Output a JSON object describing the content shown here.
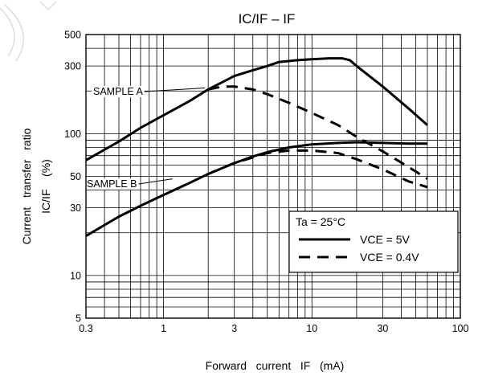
{
  "chart_data": {
    "type": "line",
    "title": "IC/IF – IF",
    "xlabel": "Forward   current   IF   (mA)",
    "ylabel_line1": "Current   transfer   ratio",
    "ylabel_line2": "IC/IF    (%)",
    "x_scale": "log",
    "y_scale": "log",
    "xlim": [
      0.3,
      100
    ],
    "ylim": [
      5,
      500
    ],
    "x_ticks": [
      {
        "value": 0.3,
        "label": "0.3"
      },
      {
        "value": 1,
        "label": "1"
      },
      {
        "value": 3,
        "label": "3"
      },
      {
        "value": 10,
        "label": "10"
      },
      {
        "value": 30,
        "label": "30"
      },
      {
        "value": 100,
        "label": "100"
      }
    ],
    "y_ticks": [
      {
        "value": 5,
        "label": "5"
      },
      {
        "value": 10,
        "label": "10"
      },
      {
        "value": 30,
        "label": "30"
      },
      {
        "value": 50,
        "label": "50"
      },
      {
        "value": 100,
        "label": "100"
      },
      {
        "value": 300,
        "label": "300"
      },
      {
        "value": 500,
        "label": "500"
      }
    ],
    "grid": true,
    "legend": {
      "placement": "lower-right",
      "header": "Ta = 25°C",
      "entries": [
        {
          "label": "VCE = 5V",
          "style": "solid"
        },
        {
          "label": "VCE = 0.4V",
          "style": "dashed"
        }
      ]
    },
    "annotations": [
      {
        "text": "SAMPLE   A",
        "target_x": 1.9,
        "target_y": 210
      },
      {
        "text": "SAMPLE   B",
        "target_x": 1.15,
        "target_y": 48
      }
    ],
    "series": [
      {
        "group": "SAMPLE A",
        "condition": "VCE = 5V",
        "style": "solid",
        "x": [
          0.3,
          0.5,
          0.7,
          1,
          1.5,
          2,
          3,
          4,
          5,
          6,
          8,
          10,
          13,
          16,
          18,
          20,
          30,
          45,
          60
        ],
        "y": [
          65,
          88,
          110,
          135,
          170,
          205,
          255,
          280,
          300,
          320,
          330,
          335,
          340,
          340,
          330,
          300,
          215,
          150,
          115
        ]
      },
      {
        "group": "SAMPLE A",
        "condition": "VCE = 0.4V",
        "style": "dashed",
        "x": [
          2,
          2.5,
          3,
          4,
          5,
          7,
          10,
          15,
          20,
          30,
          45,
          60
        ],
        "y": [
          205,
          215,
          215,
          205,
          190,
          165,
          140,
          115,
          95,
          75,
          58,
          48
        ]
      },
      {
        "group": "SAMPLE B",
        "condition": "VCE = 5V",
        "style": "solid",
        "x": [
          0.3,
          0.5,
          0.7,
          1,
          1.5,
          2,
          3,
          4,
          5,
          7,
          10,
          15,
          20,
          30,
          45,
          60
        ],
        "y": [
          19,
          26,
          31,
          37,
          45,
          52,
          62,
          69,
          74,
          80,
          84,
          86,
          87,
          86,
          85,
          85
        ]
      },
      {
        "group": "SAMPLE B",
        "condition": "VCE = 0.4V",
        "style": "dashed",
        "x": [
          2,
          3,
          4,
          5,
          7,
          10,
          15,
          20,
          30,
          45,
          60
        ],
        "y": [
          52,
          62,
          68,
          73,
          76,
          76,
          73,
          66,
          56,
          46,
          42
        ]
      }
    ]
  }
}
